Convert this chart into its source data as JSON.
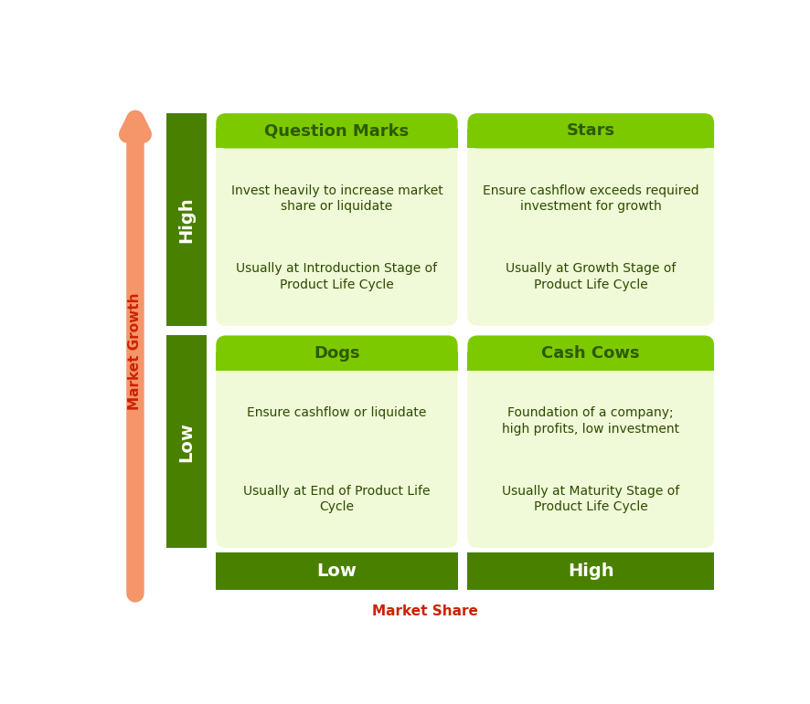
{
  "dark_green_bar": "#4A8000",
  "lime_green_header": "#7DC900",
  "light_green_body": "#F0FAD8",
  "dark_text_title": "#2D5A00",
  "dark_text_body": "#2D4A00",
  "arrow_fill": "#F5956A",
  "arrow_label_color": "#CC2200",
  "quadrants": [
    {
      "title": "Question Marks",
      "upper_lines": [
        "Invest heavily to increase market",
        "share or liquidate"
      ],
      "lower_lines": [
        "Usually at Introduction Stage of",
        "Product Life Cycle"
      ]
    },
    {
      "title": "Stars",
      "upper_lines": [
        "Ensure cashflow exceeds required",
        "investment for growth"
      ],
      "lower_lines": [
        "Usually at Growth Stage of",
        "Product Life Cycle"
      ]
    },
    {
      "title": "Dogs",
      "upper_lines": [
        "Ensure cashflow or liquidate"
      ],
      "lower_lines": [
        "Usually at End of Product Life",
        "Cycle"
      ]
    },
    {
      "title": "Cash Cows",
      "upper_lines": [
        "Foundation of a company;",
        "high profits, low investment"
      ],
      "lower_lines": [
        "Usually at Maturity Stage of",
        "Product Life Cycle"
      ]
    }
  ],
  "row_labels": [
    "High",
    "Low"
  ],
  "col_labels": [
    "Low",
    "High"
  ],
  "y_axis_label": "Market Growth",
  "x_axis_label": "Market Share"
}
